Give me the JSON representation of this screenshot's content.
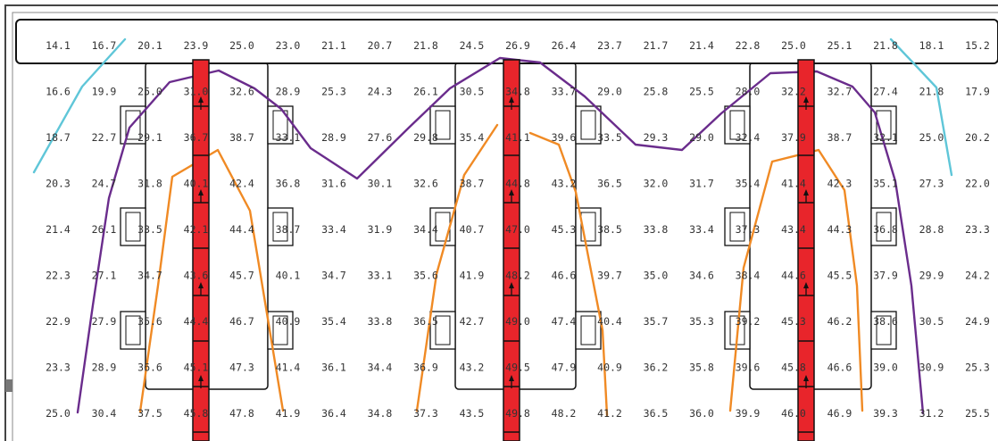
{
  "grid": {
    "rows": [
      [
        "14.1",
        "16.7",
        "20.1",
        "23.9",
        "25.0",
        "23.0",
        "21.1",
        "20.7",
        "21.8",
        "24.5",
        "26.9",
        "26.4",
        "23.7",
        "21.7",
        "21.4",
        "22.8",
        "25.0",
        "25.1",
        "21.8",
        "18.1",
        "15.2"
      ],
      [
        "16.6",
        "19.9",
        "25.0",
        "31.0",
        "32.6",
        "28.9",
        "25.3",
        "24.3",
        "26.1",
        "30.5",
        "34.8",
        "33.7",
        "29.0",
        "25.8",
        "25.5",
        "28.0",
        "32.2",
        "32.7",
        "27.4",
        "21.8",
        "17.9"
      ],
      [
        "18.7",
        "22.7",
        "29.1",
        "36.7",
        "38.7",
        "33.1",
        "28.9",
        "27.6",
        "29.8",
        "35.4",
        "41.1",
        "39.6",
        "33.5",
        "29.3",
        "29.0",
        "32.4",
        "37.9",
        "38.7",
        "32.1",
        "25.0",
        "20.2"
      ],
      [
        "20.3",
        "24.7",
        "31.8",
        "40.1",
        "42.4",
        "36.8",
        "31.6",
        "30.1",
        "32.6",
        "38.7",
        "44.8",
        "43.2",
        "36.5",
        "32.0",
        "31.7",
        "35.4",
        "41.4",
        "42.3",
        "35.1",
        "27.3",
        "22.0"
      ],
      [
        "21.4",
        "26.1",
        "33.5",
        "42.1",
        "44.4",
        "38.7",
        "33.4",
        "31.9",
        "34.4",
        "40.7",
        "47.0",
        "45.3",
        "38.5",
        "33.8",
        "33.4",
        "37.3",
        "43.4",
        "44.3",
        "36.8",
        "28.8",
        "23.3"
      ],
      [
        "22.3",
        "27.1",
        "34.7",
        "43.6",
        "45.7",
        "40.1",
        "34.7",
        "33.1",
        "35.6",
        "41.9",
        "48.2",
        "46.6",
        "39.7",
        "35.0",
        "34.6",
        "38.4",
        "44.6",
        "45.5",
        "37.9",
        "29.9",
        "24.2"
      ],
      [
        "22.9",
        "27.9",
        "35.6",
        "44.4",
        "46.7",
        "40.9",
        "35.4",
        "33.8",
        "36.5",
        "42.7",
        "49.0",
        "47.4",
        "40.4",
        "35.7",
        "35.3",
        "39.2",
        "45.3",
        "46.2",
        "38.6",
        "30.5",
        "24.9"
      ],
      [
        "23.3",
        "28.9",
        "36.6",
        "45.1",
        "47.3",
        "41.4",
        "36.1",
        "34.4",
        "36.9",
        "43.2",
        "49.5",
        "47.9",
        "40.9",
        "36.2",
        "35.8",
        "39.6",
        "45.8",
        "46.6",
        "39.0",
        "30.9",
        "25.3"
      ],
      [
        "25.0",
        "30.4",
        "37.5",
        "45.8",
        "47.8",
        "41.9",
        "36.4",
        "34.8",
        "37.3",
        "43.5",
        "49.8",
        "48.2",
        "41.2",
        "36.5",
        "36.0",
        "39.9",
        "46.0",
        "46.9",
        "39.3",
        "31.2",
        "25.5"
      ]
    ]
  },
  "colors": {
    "background": "#ffffff",
    "text": "#333333",
    "frame": "#111111",
    "rack": "#e8252b",
    "isoline_low": "#5fc6d8",
    "isoline_mid": "#6a2c8c",
    "isoline_high": "#f08a24"
  },
  "icons": {
    "airflow": "arrow-up-icon",
    "server_unit": "rack-slot-icon"
  }
}
